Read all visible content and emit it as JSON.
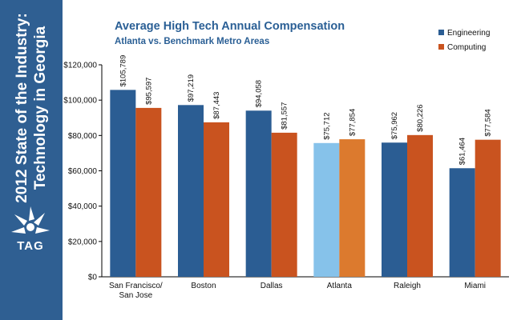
{
  "sidebar": {
    "title_line1": "2012 State of the Industry:",
    "title_line2": "Technology in Georgia",
    "logo_text": "TAG"
  },
  "colors": {
    "sidebar": "#2f5f92",
    "engineering": "#2b5d93",
    "computing": "#c9531f",
    "atlanta_engineering": "#86c2ea",
    "atlanta_computing": "#dc7a2e",
    "title": "#2a5f95"
  },
  "chart_data": {
    "type": "bar",
    "title": "Average High Tech Annual Compensation",
    "subtitle": "Atlanta vs. Benchmark Metro Areas",
    "xlabel": "",
    "ylabel": "",
    "categories": [
      [
        "San Francisco/",
        "San Jose"
      ],
      [
        "Boston"
      ],
      [
        "Dallas"
      ],
      [
        "Atlanta"
      ],
      [
        "Raleigh"
      ],
      [
        "Miami"
      ]
    ],
    "series": [
      {
        "name": "Engineering",
        "values": [
          105789,
          97219,
          94058,
          75712,
          75962,
          61464
        ],
        "labels": [
          "$105,789",
          "$97,219",
          "$94,058",
          "$75,712",
          "$75,962",
          "$61,464"
        ]
      },
      {
        "name": "Computing",
        "values": [
          95597,
          87443,
          81557,
          77854,
          80226,
          77584
        ],
        "labels": [
          "$95,597",
          "$87,443",
          "$81,557",
          "$77,854",
          "$80,226",
          "$77,584"
        ]
      }
    ],
    "highlight_category": "Atlanta",
    "ylim": [
      0,
      120000
    ],
    "yticks": [
      0,
      20000,
      40000,
      60000,
      80000,
      100000,
      120000
    ],
    "ytick_labels": [
      "$0",
      "$20,000",
      "$40,000",
      "$60,000",
      "$80,000",
      "$100,000",
      "$120,000"
    ],
    "grid": false,
    "legend": "top-right"
  }
}
